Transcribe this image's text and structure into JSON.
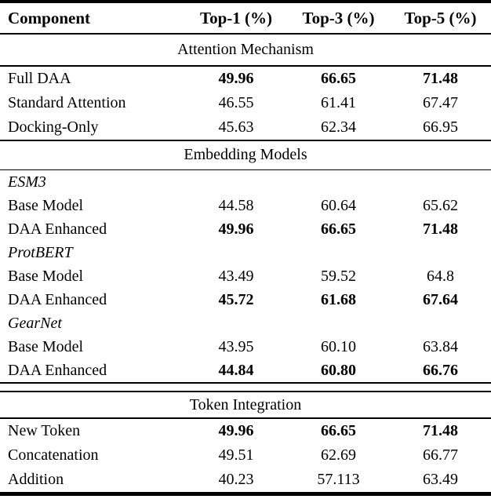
{
  "table": {
    "columns": [
      "Component",
      "Top-1 (%)",
      "Top-3 (%)",
      "Top-5 (%)"
    ],
    "sections": [
      {
        "title": "Attention Mechanism",
        "rows": [
          {
            "label": "Full DAA",
            "values": [
              "49.96",
              "66.65",
              "71.48"
            ],
            "emphasis": "bold-values"
          },
          {
            "label": "Standard Attention",
            "values": [
              "46.55",
              "61.41",
              "67.47"
            ],
            "emphasis": "none"
          },
          {
            "label": "Docking-Only",
            "values": [
              "45.63",
              "62.34",
              "66.95"
            ],
            "emphasis": "none"
          }
        ]
      },
      {
        "title": "Embedding Models",
        "rows": [
          {
            "label": "ESM3",
            "values": [
              "",
              "",
              ""
            ],
            "emphasis": "italic-group-label"
          },
          {
            "label": "Base Model",
            "values": [
              "44.58",
              "60.64",
              "65.62"
            ],
            "emphasis": "indented"
          },
          {
            "label": "DAA Enhanced",
            "values": [
              "49.96",
              "66.65",
              "71.48"
            ],
            "emphasis": "indented-bold-values"
          },
          {
            "label": "ProtBERT",
            "values": [
              "",
              "",
              ""
            ],
            "emphasis": "italic-group-label"
          },
          {
            "label": "Base Model",
            "values": [
              "43.49",
              "59.52",
              "64.8"
            ],
            "emphasis": "indented"
          },
          {
            "label": "DAA Enhanced",
            "values": [
              "45.72",
              "61.68",
              "67.64"
            ],
            "emphasis": "indented-bold-values"
          },
          {
            "label": "GearNet",
            "values": [
              "",
              "",
              ""
            ],
            "emphasis": "italic-group-label"
          },
          {
            "label": "Base Model",
            "values": [
              "43.95",
              "60.10",
              "63.84"
            ],
            "emphasis": "indented"
          },
          {
            "label": "DAA Enhanced",
            "values": [
              "44.84",
              "60.80",
              "66.76"
            ],
            "emphasis": "indented-bold-values"
          }
        ]
      },
      {
        "title": "Token Integration",
        "rows": [
          {
            "label": "New Token",
            "values": [
              "49.96",
              "66.65",
              "71.48"
            ],
            "emphasis": "bold-values"
          },
          {
            "label": "Concatenation",
            "values": [
              "49.51",
              "62.69",
              "66.77"
            ],
            "emphasis": "none"
          },
          {
            "label": "Addition",
            "values": [
              "40.23",
              "57.113",
              "63.49"
            ],
            "emphasis": "none"
          }
        ]
      }
    ]
  }
}
